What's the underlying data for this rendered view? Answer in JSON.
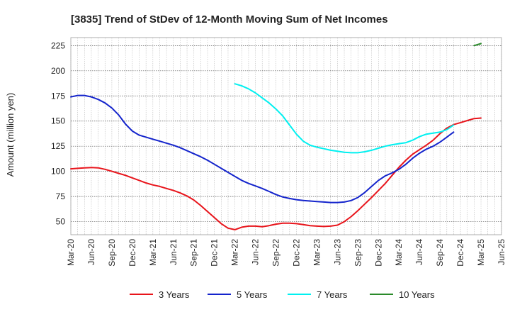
{
  "chart_data": {
    "type": "line",
    "title": "[3835]  Trend of StDev of 12-Month Moving Sum of Net Incomes",
    "xlabel": "",
    "ylabel": "Amount (million yen)",
    "x_ticks": [
      "Mar-20",
      "Jun-20",
      "Sep-20",
      "Dec-20",
      "Mar-21",
      "Jun-21",
      "Sep-21",
      "Dec-21",
      "Mar-22",
      "Jun-22",
      "Sep-22",
      "Dec-22",
      "Mar-23",
      "Jun-23",
      "Sep-23",
      "Dec-23",
      "Mar-24",
      "Jun-24",
      "Sep-24",
      "Dec-24",
      "Mar-25",
      "Jun-25"
    ],
    "y_ticks": [
      50,
      75,
      100,
      125,
      150,
      175,
      200,
      225
    ],
    "ylim": [
      37,
      233
    ],
    "grid": true,
    "legend_position": "bottom",
    "series": [
      {
        "name": "3 Years",
        "color": "#e8141b",
        "start": "Mar-20",
        "values": [
          102.5,
          103,
          103.5,
          103.8,
          103.5,
          102,
          100,
          98,
          96,
          93.5,
          91,
          88.5,
          86.5,
          85,
          83,
          81,
          78.5,
          75.5,
          71.5,
          66,
          60,
          54,
          48,
          43.5,
          42,
          44.5,
          45.5,
          45.5,
          45,
          46,
          47.5,
          48.5,
          48.5,
          48,
          47,
          46,
          45.5,
          45.2,
          45.5,
          46.5,
          50,
          55,
          61,
          67.5,
          74,
          81,
          88,
          96,
          104,
          111,
          117,
          121.5,
          126,
          131,
          137.5,
          143,
          146.5,
          148.5,
          150.5,
          152.5,
          153
        ]
      },
      {
        "name": "5 Years",
        "color": "#1424cc",
        "start": "Mar-20",
        "values": [
          174,
          175.5,
          175.5,
          174,
          171.5,
          168,
          163,
          156,
          147,
          140,
          136,
          134,
          132,
          130,
          128,
          126,
          123.5,
          120.5,
          117.5,
          114.5,
          111,
          107,
          103,
          99,
          95,
          91,
          88,
          85.5,
          83,
          80,
          77,
          74.5,
          73,
          71.8,
          71,
          70.5,
          70,
          69.5,
          69,
          69,
          69.5,
          71,
          74,
          79,
          85,
          91,
          95.5,
          98.5,
          102,
          107,
          113,
          118,
          122,
          125,
          129,
          134,
          139
        ]
      },
      {
        "name": "7 Years",
        "color": "#00f0f0",
        "start": "Mar-22",
        "values": [
          187,
          185,
          182,
          178,
          173,
          168,
          162,
          155,
          146,
          137,
          130,
          126,
          124,
          122.5,
          121,
          120,
          119,
          118.5,
          118.5,
          119.5,
          121,
          123,
          125,
          126.5,
          127.5,
          128.5,
          131,
          134.5,
          137,
          138,
          139,
          141.5,
          146
        ]
      },
      {
        "name": "10 Years",
        "color": "#2a8a2a",
        "start": "Feb-25",
        "values": [
          225,
          227
        ]
      }
    ]
  }
}
